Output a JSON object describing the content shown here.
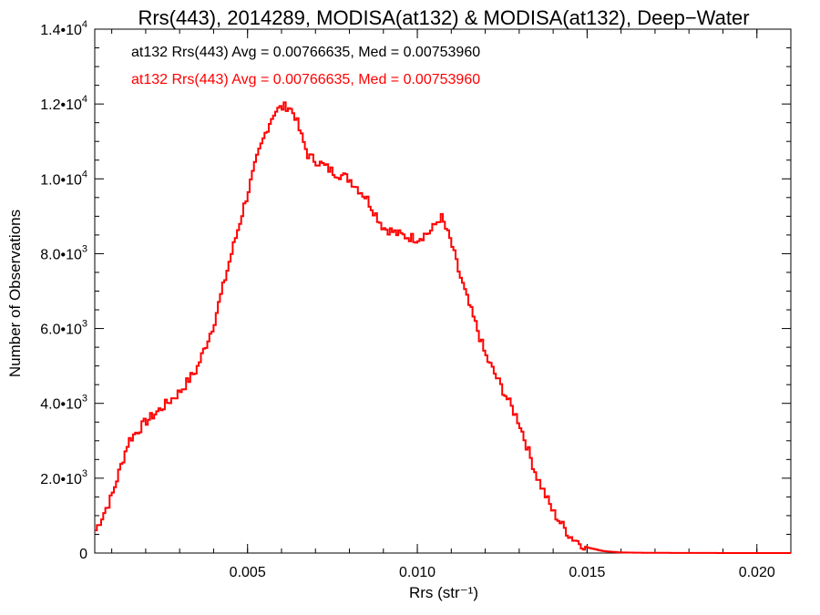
{
  "chart_data": {
    "type": "line",
    "title": "Rrs(443), 2014289, MODISA(at132) & MODISA(at132), Deep−Water",
    "xlabel": "Rrs (str⁻¹)",
    "ylabel": "Number of Observations",
    "xlim": [
      0.0005,
      0.021
    ],
    "ylim": [
      0,
      14000
    ],
    "grid": false,
    "legend_placement": "top-left",
    "x_ticks": [
      {
        "value": 0.005,
        "label": "0.005"
      },
      {
        "value": 0.01,
        "label": "0.010"
      },
      {
        "value": 0.015,
        "label": "0.015"
      },
      {
        "value": 0.02,
        "label": "0.020"
      }
    ],
    "y_ticks": [
      {
        "value": 0,
        "mantissa": "0",
        "exp": ""
      },
      {
        "value": 2000,
        "mantissa": "2.0•10",
        "exp": "3"
      },
      {
        "value": 4000,
        "mantissa": "4.0•10",
        "exp": "3"
      },
      {
        "value": 6000,
        "mantissa": "6.0•10",
        "exp": "3"
      },
      {
        "value": 8000,
        "mantissa": "8.0•10",
        "exp": "3"
      },
      {
        "value": 10000,
        "mantissa": "1.0•10",
        "exp": "4"
      },
      {
        "value": 12000,
        "mantissa": "1.2•10",
        "exp": "4"
      },
      {
        "value": 14000,
        "mantissa": "1.4•10",
        "exp": "4"
      }
    ],
    "annotations": [
      {
        "text": "at132 Rrs(443) Avg = 0.00766635, Med = 0.00753960",
        "color": "#000000"
      },
      {
        "text": "at132 Rrs(443) Avg = 0.00766635, Med = 0.00753960",
        "color": "#ff0000"
      }
    ],
    "series": [
      {
        "color": "#ff0000",
        "style": "histogram-step",
        "x": [
          0.0005,
          0.001,
          0.0015,
          0.002,
          0.0025,
          0.003,
          0.0035,
          0.004,
          0.0045,
          0.005,
          0.0053,
          0.0056,
          0.0058,
          0.006,
          0.0062,
          0.0064,
          0.0066,
          0.0068,
          0.007,
          0.0075,
          0.008,
          0.0085,
          0.009,
          0.0095,
          0.01,
          0.0104,
          0.0107,
          0.011,
          0.0112,
          0.0115,
          0.0118,
          0.012,
          0.0125,
          0.013,
          0.0135,
          0.014,
          0.0145,
          0.015,
          0.0155,
          0.016,
          0.017,
          0.018,
          0.019,
          0.02,
          0.021
        ],
        "y": [
          550,
          1500,
          3000,
          3500,
          3900,
          4300,
          4900,
          6100,
          7900,
          9600,
          10600,
          11400,
          11800,
          11900,
          11950,
          11700,
          11100,
          10600,
          10500,
          10200,
          10000,
          9500,
          8700,
          8500,
          8400,
          8600,
          9000,
          8300,
          7600,
          6700,
          5900,
          5300,
          4400,
          3500,
          2100,
          1100,
          450,
          150,
          50,
          15,
          5,
          2,
          1,
          0,
          0
        ]
      }
    ]
  }
}
